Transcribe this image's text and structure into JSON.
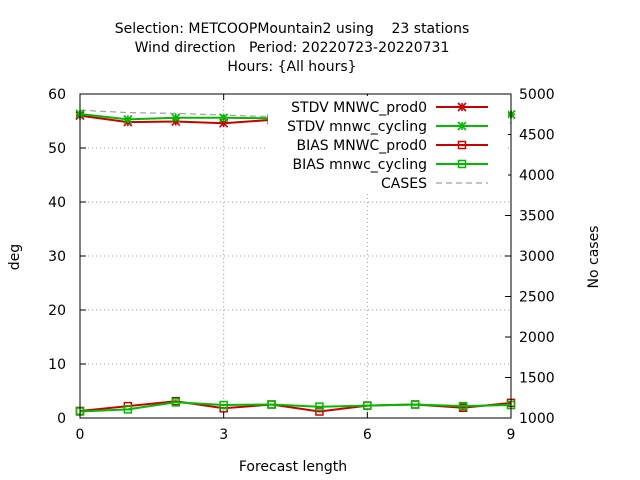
{
  "chart_data": {
    "type": "line",
    "title_lines": [
      "Selection: METCOOPMountain2 using    23 stations",
      "Wind direction   Period: 20220723-20220731",
      "Hours: {All hours}"
    ],
    "xlabel": "Forecast length",
    "ylabel": "deg",
    "y2label": "No cases",
    "xlim": [
      0,
      9
    ],
    "ylim": [
      0,
      60
    ],
    "y2lim": [
      1000,
      5000
    ],
    "xticks": [
      0,
      3,
      6,
      9
    ],
    "yticks": [
      0,
      10,
      20,
      30,
      40,
      50,
      60
    ],
    "y2ticks": [
      1000,
      1500,
      2000,
      2500,
      3000,
      3500,
      4000,
      4500,
      5000
    ],
    "grid": true,
    "legend_position": "top-right",
    "x": [
      0,
      1,
      2,
      3,
      4,
      5,
      6,
      7,
      8,
      9
    ],
    "series": [
      {
        "name": "STDV MNWC_prod0",
        "axis": "y",
        "color": "#cc0000",
        "marker": "star",
        "values": [
          56.0,
          54.8,
          54.9,
          54.6,
          55.2,
          55.2,
          56.0,
          55.8,
          55.9,
          56.2
        ]
      },
      {
        "name": "STDV mnwc_cycling",
        "axis": "y",
        "color": "#00bb00",
        "marker": "star",
        "values": [
          56.3,
          55.3,
          55.6,
          55.6,
          55.5,
          55.6,
          56.1,
          56.2,
          56.3,
          56.2
        ]
      },
      {
        "name": "BIAS MNWC_prod0",
        "axis": "y",
        "color": "#cc0000",
        "marker": "square",
        "values": [
          1.3,
          2.2,
          3.1,
          1.8,
          2.5,
          1.2,
          2.3,
          2.5,
          1.9,
          2.8
        ]
      },
      {
        "name": "BIAS mnwc_cycling",
        "axis": "y",
        "color": "#00bb00",
        "marker": "square",
        "values": [
          1.2,
          1.6,
          2.9,
          2.4,
          2.5,
          2.1,
          2.3,
          2.5,
          2.2,
          2.4
        ]
      },
      {
        "name": "CASES",
        "axis": "y2",
        "color": "#a0a0a0",
        "marker": "none",
        "dash": true,
        "values": [
          4800,
          4770,
          4760,
          4740,
          4720,
          4700,
          4700,
          4690,
          4670,
          4640
        ]
      }
    ]
  }
}
